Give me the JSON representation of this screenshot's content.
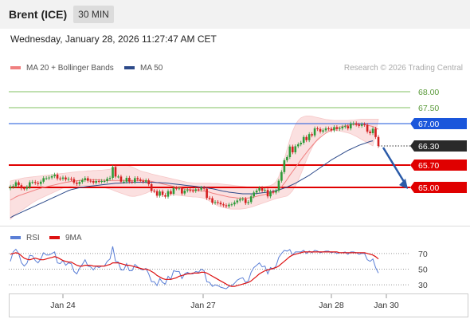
{
  "header": {
    "instrument": "Brent (ICE)",
    "timeframe": "30 MIN",
    "datetime": "Wednesday, January 28, 2026 11:27:47 AM CET"
  },
  "legend": {
    "bb_label": "MA 20 + Bollinger Bands",
    "ma50_label": "MA 50",
    "credit": "Research © 2026 Trading Central"
  },
  "indicator_legend": {
    "rsi_label": "RSI",
    "ma_label": "9MA"
  },
  "colors": {
    "bb": "#f08080",
    "ma50": "#2d4a8a",
    "rsi": "#5b7fd6",
    "rsi_ma": "#dd1111",
    "support": "#e00000",
    "pivot": "#1a56db",
    "target": "#80c060",
    "bull": "#2e9b3a",
    "bear": "#d42020",
    "arrow": "#2a5aa8"
  },
  "chart_data": [
    {
      "type": "candlestick",
      "x_ticks": [
        "Jan 24",
        "Jan 27",
        "Jan 28",
        "Jan 30"
      ],
      "ylim": [
        63.8,
        68.5
      ],
      "last_price": "66.30",
      "levels": [
        {
          "label": "68.00",
          "value": 68.0,
          "kind": "target"
        },
        {
          "label": "67.50",
          "value": 67.5,
          "kind": "target"
        },
        {
          "label": "67.00",
          "value": 67.0,
          "kind": "pivot"
        },
        {
          "label": "65.70",
          "value": 65.7,
          "kind": "support"
        },
        {
          "label": "65.00",
          "value": 65.0,
          "kind": "support"
        }
      ],
      "forecast_arrow": {
        "from": 66.25,
        "to": 64.95
      },
      "close": [
        65.02,
        65.04,
        65.16,
        65.07,
        64.97,
        64.96,
        65.01,
        65.16,
        65.17,
        65.14,
        65.11,
        65.18,
        65.29,
        65.29,
        65.31,
        65.35,
        65.4,
        65.28,
        65.27,
        65.31,
        65.25,
        65.27,
        65.26,
        65.15,
        65.11,
        65.17,
        65.23,
        65.29,
        65.21,
        65.2,
        65.15,
        65.2,
        65.18,
        65.2,
        65.2,
        65.27,
        65.3,
        65.64,
        65.34,
        65.34,
        65.18,
        65.18,
        65.3,
        65.18,
        65.17,
        65.29,
        65.25,
        65.21,
        65.18,
        65.22,
        65.1,
        64.89,
        64.88,
        64.74,
        64.87,
        64.76,
        64.71,
        64.88,
        64.8,
        64.98,
        64.97,
        64.97,
        64.81,
        64.9,
        64.92,
        64.9,
        64.89,
        64.94,
        64.93,
        64.99,
        64.96,
        64.67,
        64.66,
        64.52,
        64.54,
        64.52,
        64.47,
        64.44,
        64.41,
        64.46,
        64.47,
        64.53,
        64.59,
        64.63,
        64.64,
        64.51,
        64.54,
        64.72,
        64.84,
        64.9,
        64.98,
        64.9,
        64.92,
        64.72,
        64.87,
        64.84,
        64.9,
        65.21,
        65.48,
        65.85,
        65.95,
        66.28,
        66.1,
        66.29,
        66.35,
        66.4,
        66.58,
        66.48,
        66.67,
        66.63,
        66.85,
        66.83,
        66.75,
        66.79,
        66.85,
        66.84,
        66.79,
        66.89,
        66.83,
        66.85,
        66.9,
        66.92,
        66.85,
        67.0,
        67.01,
        66.97,
        66.93,
        66.98,
        66.96,
        66.75,
        66.7,
        66.84,
        66.58,
        66.3
      ],
      "ma20": [
        64.6,
        64.65,
        64.7,
        64.74,
        64.77,
        64.8,
        64.83,
        64.86,
        64.89,
        64.92,
        64.95,
        64.97,
        65.0,
        65.02,
        65.04,
        65.06,
        65.08,
        65.1,
        65.12,
        65.14,
        65.16,
        65.17,
        65.19,
        65.2,
        65.21,
        65.22,
        65.23,
        65.24,
        65.24,
        65.24,
        65.24,
        65.24,
        65.23,
        65.23,
        65.22,
        65.22,
        65.22,
        65.22,
        65.22,
        65.22,
        65.22,
        65.22,
        65.22,
        65.21,
        65.21,
        65.21,
        65.21,
        65.21,
        65.21,
        65.21,
        65.2,
        65.19,
        65.17,
        65.15,
        65.13,
        65.11,
        65.09,
        65.07,
        65.05,
        65.03,
        65.01,
        64.99,
        64.97,
        64.95,
        64.94,
        64.93,
        64.92,
        64.91,
        64.9,
        64.89,
        64.88,
        64.87,
        64.85,
        64.82,
        64.8,
        64.78,
        64.76,
        64.74,
        64.72,
        64.7,
        64.69,
        64.68,
        64.67,
        64.66,
        64.66,
        64.66,
        64.67,
        64.68,
        64.7,
        64.72,
        64.74,
        64.76,
        64.78,
        64.8,
        64.82,
        64.84,
        64.87,
        64.93,
        65.02,
        65.13,
        65.25,
        65.38,
        65.5,
        65.62,
        65.74,
        65.86,
        65.98,
        66.09,
        66.2,
        66.3,
        66.4,
        66.49,
        66.57,
        66.64,
        66.7,
        66.75,
        66.79,
        66.83,
        66.86,
        66.89,
        66.91,
        66.93,
        66.94,
        66.96,
        66.97,
        66.97,
        66.97,
        66.97,
        66.97,
        66.95,
        66.93,
        66.91,
        66.87,
        66.82
      ],
      "ma20_upper_band": [
        65.2,
        65.22,
        65.24,
        65.26,
        65.28,
        65.3,
        65.31,
        65.32,
        65.33,
        65.34,
        65.35,
        65.36,
        65.37,
        65.38,
        65.39,
        65.4,
        65.41,
        65.42,
        65.43,
        65.44,
        65.45,
        65.46,
        65.47,
        65.48,
        65.49,
        65.5,
        65.5,
        65.51,
        65.52,
        65.52,
        65.53,
        65.53,
        65.54,
        65.54,
        65.55,
        65.56,
        65.57,
        65.62,
        65.66,
        65.68,
        65.7,
        65.7,
        65.69,
        65.67,
        65.64,
        65.6,
        65.56,
        65.52,
        65.49,
        65.47,
        65.45,
        65.42,
        65.4,
        65.38,
        65.36,
        65.34,
        65.32,
        65.3,
        65.28,
        65.26,
        65.24,
        65.22,
        65.2,
        65.18,
        65.16,
        65.15,
        65.14,
        65.13,
        65.13,
        65.13,
        65.13,
        65.13,
        65.13,
        65.12,
        65.12,
        65.12,
        65.11,
        65.1,
        65.09,
        65.08,
        65.07,
        65.06,
        65.05,
        65.04,
        65.03,
        65.02,
        65.01,
        65.0,
        65.0,
        65.0,
        65.0,
        65.01,
        65.02,
        65.04,
        65.06,
        65.1,
        65.18,
        65.34,
        65.58,
        65.88,
        66.2,
        66.5,
        66.76,
        66.96,
        67.1,
        67.18,
        67.22,
        67.24,
        67.24,
        67.23,
        67.21,
        67.19,
        67.17,
        67.15,
        67.13,
        67.12,
        67.11,
        67.1,
        67.1,
        67.1,
        67.1,
        67.1,
        67.1,
        67.11,
        67.11,
        67.12,
        67.13,
        67.14,
        67.14,
        67.14,
        67.14,
        67.14,
        67.14,
        67.14
      ],
      "ma20_lower_band": [
        64.0,
        64.08,
        64.16,
        64.22,
        64.28,
        64.34,
        64.4,
        64.46,
        64.52,
        64.57,
        64.62,
        64.66,
        64.7,
        64.74,
        64.78,
        64.82,
        64.86,
        64.9,
        64.94,
        64.98,
        65.0,
        65.02,
        65.04,
        65.05,
        65.06,
        65.06,
        65.06,
        65.06,
        65.05,
        65.04,
        65.03,
        65.02,
        65.01,
        65.0,
        64.99,
        64.97,
        64.95,
        64.92,
        64.88,
        64.85,
        64.82,
        64.79,
        64.76,
        64.73,
        64.72,
        64.72,
        64.74,
        64.76,
        64.79,
        64.82,
        64.86,
        64.9,
        64.9,
        64.88,
        64.86,
        64.84,
        64.82,
        64.8,
        64.78,
        64.77,
        64.76,
        64.75,
        64.74,
        64.73,
        64.72,
        64.71,
        64.7,
        64.7,
        64.69,
        64.68,
        64.66,
        64.62,
        64.57,
        64.52,
        64.47,
        64.42,
        64.39,
        64.37,
        64.35,
        64.33,
        64.32,
        64.32,
        64.32,
        64.32,
        64.33,
        64.34,
        64.36,
        64.38,
        64.41,
        64.44,
        64.47,
        64.5,
        64.53,
        64.56,
        64.59,
        64.62,
        64.65,
        64.67,
        64.69,
        64.71,
        64.73,
        64.8,
        64.9,
        65.05,
        65.22,
        65.42,
        65.64,
        65.86,
        66.06,
        66.24,
        66.4,
        66.52,
        66.62,
        66.7,
        66.75,
        66.78,
        66.79,
        66.79,
        66.78,
        66.77,
        66.75,
        66.73,
        66.71,
        66.68,
        66.64,
        66.6,
        66.55,
        66.5,
        66.45,
        66.4,
        66.35,
        66.3
      ],
      "ma50": [
        64.05,
        64.1,
        64.14,
        64.18,
        64.22,
        64.26,
        64.3,
        64.34,
        64.38,
        64.42,
        64.46,
        64.5,
        64.54,
        64.58,
        64.62,
        64.66,
        64.7,
        64.74,
        64.78,
        64.82,
        64.86,
        64.9,
        64.93,
        64.95,
        64.97,
        64.99,
        65.01,
        65.02,
        65.03,
        65.04,
        65.05,
        65.06,
        65.07,
        65.08,
        65.09,
        65.1,
        65.11,
        65.12,
        65.13,
        65.13,
        65.14,
        65.14,
        65.15,
        65.15,
        65.16,
        65.16,
        65.16,
        65.16,
        65.16,
        65.16,
        65.16,
        65.16,
        65.16,
        65.15,
        65.15,
        65.14,
        65.14,
        65.13,
        65.12,
        65.11,
        65.1,
        65.09,
        65.08,
        65.07,
        65.06,
        65.05,
        65.04,
        65.03,
        65.02,
        65.01,
        65.0,
        64.99,
        64.97,
        64.96,
        64.94,
        64.92,
        64.9,
        64.88,
        64.87,
        64.85,
        64.84,
        64.83,
        64.82,
        64.81,
        64.8,
        64.8,
        64.8,
        64.8,
        64.8,
        64.81,
        64.82,
        64.83,
        64.84,
        64.85,
        64.86,
        64.88,
        64.9,
        64.92,
        64.95,
        64.98,
        65.01,
        65.05,
        65.09,
        65.13,
        65.18,
        65.23,
        65.28,
        65.33,
        65.38,
        65.44,
        65.5,
        65.56,
        65.62,
        65.68,
        65.74,
        65.8,
        65.86,
        65.91,
        65.96,
        66.01,
        66.06,
        66.11,
        66.16,
        66.2,
        66.24,
        66.28,
        66.32,
        66.35,
        66.38,
        66.41,
        66.44,
        66.46
      ]
    },
    {
      "type": "line",
      "x_ticks": [
        "Jan 24",
        "Jan 27",
        "Jan 28",
        "Jan 30"
      ],
      "y_ticks": [
        70,
        50,
        30
      ],
      "ylim": [
        20,
        80
      ],
      "series": [
        {
          "name": "RSI",
          "values": [
            60.0,
            72.0,
            75.4,
            70.0,
            58.1,
            54.0,
            57.5,
            67.6,
            67.0,
            61.0,
            58.0,
            63.0,
            71.0,
            68.0,
            68.0,
            70.0,
            72.0,
            58.0,
            57.0,
            61.0,
            55.0,
            58.0,
            57.0,
            47.0,
            44.0,
            51.0,
            56.0,
            62.0,
            54.0,
            53.0,
            49.0,
            54.0,
            52.0,
            54.0,
            54.0,
            60.0,
            63.0,
            79.0,
            60.0,
            59.0,
            49.0,
            49.0,
            57.0,
            48.0,
            48.0,
            56.0,
            53.0,
            50.0,
            49.0,
            51.0,
            44.0,
            34.0,
            34.0,
            29.0,
            38.0,
            33.0,
            31.0,
            41.0,
            37.0,
            48.0,
            47.0,
            47.0,
            38.0,
            44.0,
            46.0,
            44.0,
            44.0,
            47.0,
            46.0,
            50.0,
            48.0,
            34.0,
            33.0,
            28.0,
            30.0,
            29.0,
            27.0,
            26.0,
            25.0,
            28.0,
            29.0,
            32.0,
            36.0,
            38.0,
            39.0,
            33.0,
            35.0,
            46.0,
            52.0,
            55.0,
            58.0,
            53.0,
            54.0,
            44.0,
            52.0,
            50.0,
            54.0,
            65.0,
            70.0,
            74.0,
            73.0,
            75.0,
            68.0,
            72.0,
            72.0,
            72.0,
            74.0,
            70.0,
            73.0,
            71.0,
            74.0,
            73.0,
            71.0,
            72.0,
            73.0,
            73.0,
            71.0,
            72.0,
            70.0,
            71.0,
            71.0,
            72.0,
            69.0,
            72.0,
            72.0,
            71.0,
            69.0,
            70.0,
            70.0,
            62.0,
            60.0,
            63.0,
            52.0,
            45.0
          ]
        },
        {
          "name": "9MA",
          "values": [
            69.0,
            70.0,
            71.0,
            70.0,
            67.0,
            64.0,
            62.6,
            62.0,
            63.0,
            64.0,
            63.0,
            62.0,
            62.0,
            63.0,
            64.0,
            65.0,
            66.0,
            65.0,
            63.0,
            61.0,
            60.0,
            59.0,
            59.0,
            57.0,
            55.0,
            54.0,
            54.0,
            55.0,
            55.0,
            55.0,
            54.0,
            54.0,
            54.0,
            54.0,
            54.0,
            55.0,
            56.0,
            58.0,
            58.0,
            58.0,
            57.0,
            56.0,
            55.0,
            55.0,
            54.0,
            53.0,
            52.0,
            51.0,
            50.0,
            50.0,
            49.0,
            47.0,
            45.0,
            42.0,
            40.0,
            38.0,
            37.0,
            37.0,
            37.0,
            38.0,
            39.0,
            41.0,
            42.0,
            43.0,
            44.0,
            44.0,
            45.0,
            45.0,
            45.0,
            46.0,
            46.0,
            45.0,
            43.0,
            41.0,
            39.0,
            37.0,
            35.0,
            33.0,
            31.0,
            29.0,
            28.0,
            28.0,
            29.0,
            30.0,
            31.0,
            32.0,
            33.0,
            35.0,
            38.0,
            41.0,
            44.0,
            46.0,
            48.0,
            49.0,
            50.0,
            51.0,
            52.0,
            54.0,
            57.0,
            60.0,
            63.0,
            66.0,
            68.0,
            69.0,
            70.0,
            71.0,
            72.0,
            72.0,
            72.0,
            72.0,
            72.0,
            72.0,
            72.0,
            72.0,
            72.0,
            72.0,
            72.0,
            72.0,
            72.0,
            71.0,
            71.0,
            71.0,
            71.0,
            71.0,
            71.0,
            71.0,
            71.0,
            71.0,
            71.0,
            70.0,
            69.0,
            68.0,
            66.0,
            63.0
          ]
        }
      ]
    }
  ]
}
